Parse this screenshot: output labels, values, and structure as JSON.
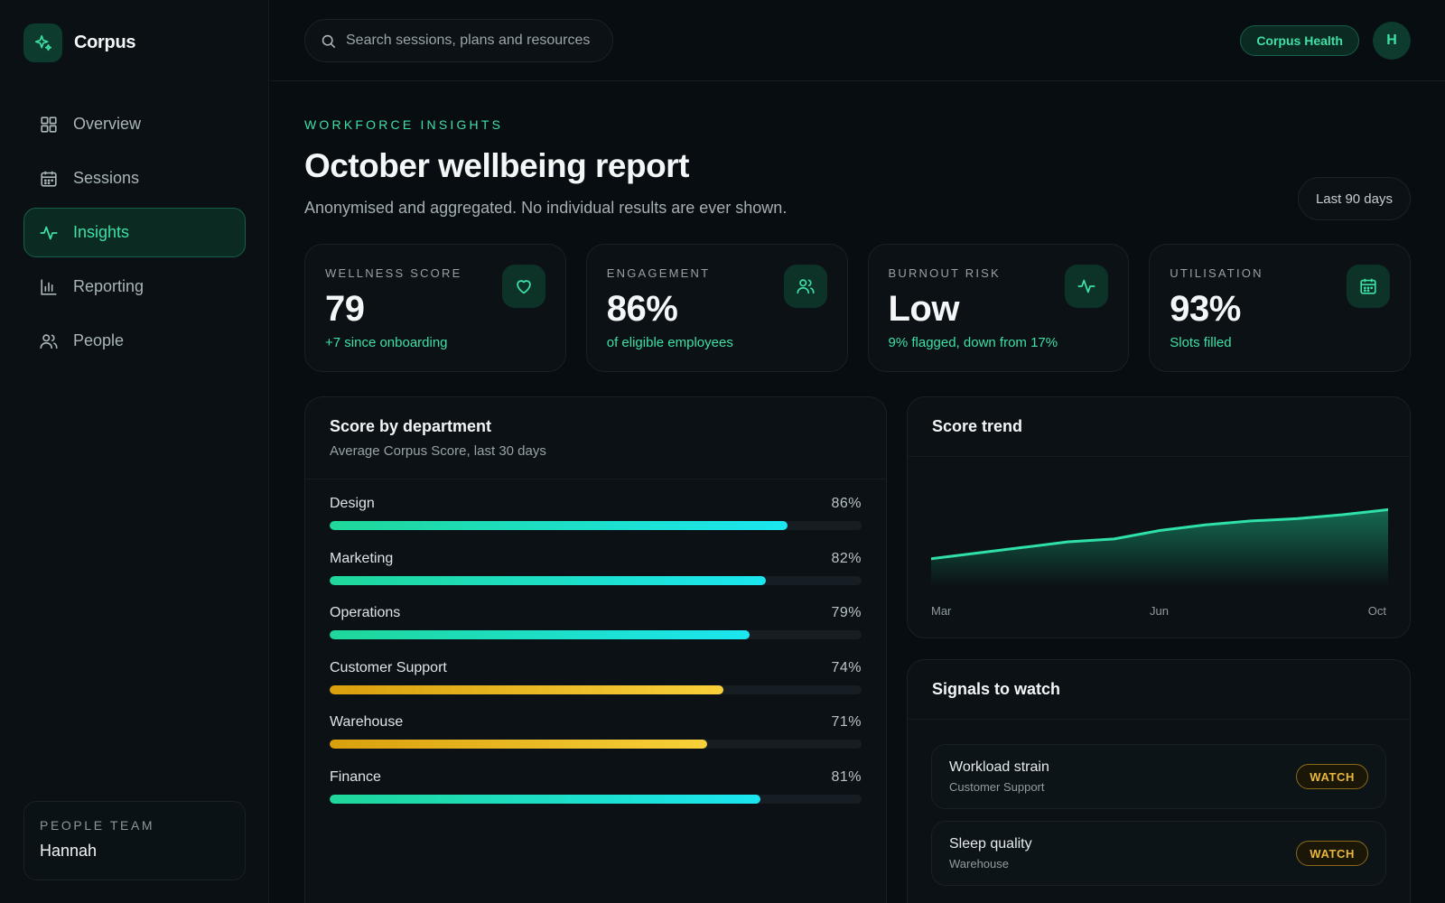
{
  "brand": {
    "name": "Corpus"
  },
  "sidebar": {
    "items": [
      {
        "label": "Overview",
        "icon": "grid-icon"
      },
      {
        "label": "Sessions",
        "icon": "calendar-icon"
      },
      {
        "label": "Insights",
        "icon": "activity-icon",
        "active": true
      },
      {
        "label": "Reporting",
        "icon": "bar-chart-icon"
      },
      {
        "label": "People",
        "icon": "users-icon"
      }
    ],
    "team": {
      "label": "PEOPLE TEAM",
      "name": "Hannah"
    }
  },
  "topbar": {
    "search_placeholder": "Search sessions, plans and resources",
    "org_badge": "Corpus Health",
    "avatar_initial": "H"
  },
  "header": {
    "eyebrow": "WORKFORCE INSIGHTS",
    "title": "October wellbeing report",
    "subtitle": "Anonymised and aggregated. No individual results are ever shown.",
    "range": "Last 90 days"
  },
  "kpis": [
    {
      "label": "WELLNESS SCORE",
      "value": "79",
      "note": "+7 since onboarding",
      "icon": "heart-icon"
    },
    {
      "label": "ENGAGEMENT",
      "value": "86%",
      "note": "of eligible employees",
      "icon": "users-icon"
    },
    {
      "label": "BURNOUT RISK",
      "value": "Low",
      "note": "9% flagged, down from 17%",
      "icon": "activity-icon"
    },
    {
      "label": "UTILISATION",
      "value": "93%",
      "note": "Slots filled",
      "icon": "calendar-icon"
    }
  ],
  "department_panel": {
    "title": "Score by department",
    "subtitle": "Average Corpus Score, last 30 days",
    "rows": [
      {
        "name": "Design",
        "pct_label": "86%",
        "value": 86,
        "status": "good"
      },
      {
        "name": "Marketing",
        "pct_label": "82%",
        "value": 82,
        "status": "good"
      },
      {
        "name": "Operations",
        "pct_label": "79%",
        "value": 79,
        "status": "good"
      },
      {
        "name": "Customer Support",
        "pct_label": "74%",
        "value": 74,
        "status": "warn"
      },
      {
        "name": "Warehouse",
        "pct_label": "71%",
        "value": 71,
        "status": "warn"
      },
      {
        "name": "Finance",
        "pct_label": "81%",
        "value": 81,
        "status": "good"
      }
    ]
  },
  "trend_panel": {
    "title": "Score trend",
    "x_ticks": [
      "Mar",
      "Jun",
      "Oct"
    ]
  },
  "chart_data": {
    "type": "area",
    "x": [
      "Mar",
      "Apr",
      "Apr",
      "May",
      "May",
      "Jun",
      "Jul",
      "Jul",
      "Aug",
      "Sep",
      "Oct"
    ],
    "values": [
      72,
      73,
      74,
      75,
      75.5,
      77,
      78,
      78.7,
      79.1,
      79.8,
      80.7
    ],
    "ylim": [
      67,
      83
    ],
    "xlabel": "",
    "ylabel": "",
    "grid": false
  },
  "signals_panel": {
    "title": "Signals to watch",
    "items": [
      {
        "title": "Workload strain",
        "dept": "Customer Support",
        "badge": "WATCH"
      },
      {
        "title": "Sleep quality",
        "dept": "Warehouse",
        "badge": "WATCH"
      }
    ]
  },
  "colors": {
    "accent": "#3ee0a6",
    "bar_good_start": "#1fd79a",
    "bar_good_end": "#1be6f0",
    "bar_warn_start": "#d9a00c",
    "bar_warn_end": "#f8d03a"
  }
}
